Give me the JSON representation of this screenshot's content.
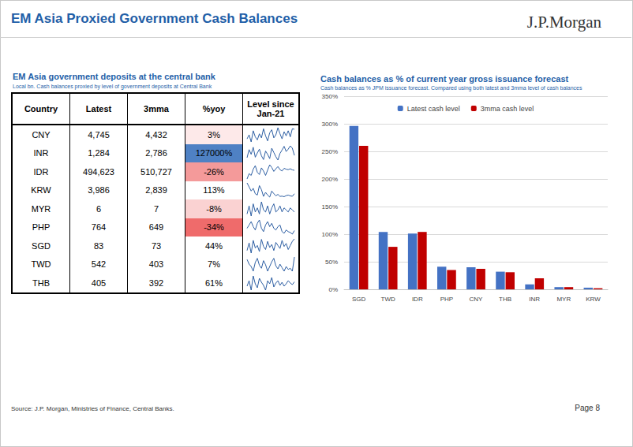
{
  "header": {
    "title": "EM Asia Proxied Government Cash Balances",
    "logo": "J.P.Morgan"
  },
  "table": {
    "title": "EM Asia government deposits at the central bank",
    "subtitle": "Local bn. Cash balances proxied by level of government deposits at Central Bank",
    "columns": [
      "Country",
      "Latest",
      "3mma",
      "%yoy",
      "Level since Jan-21"
    ],
    "rows": [
      {
        "country": "CNY",
        "latest": "4,745",
        "mma3": "4,432",
        "yoy": "3%",
        "yoy_color": "#fde9e9",
        "level_since_jan21": [
          3800,
          4200,
          3500,
          4600,
          4000,
          3700,
          4300,
          3900,
          4800,
          4100,
          3600,
          4400,
          4700,
          3900,
          4200,
          4900,
          4300,
          3800,
          4500,
          4100,
          4600,
          4000,
          4800,
          4745
        ]
      },
      {
        "country": "INR",
        "latest": "1,284",
        "mma3": "2,786",
        "yoy": "127000%",
        "yoy_color": "#4f81c4",
        "level_since_jan21": [
          800,
          2500,
          1500,
          3000,
          900,
          1800,
          2600,
          1200,
          400,
          2200,
          1500,
          600,
          2800,
          1900,
          1000,
          300,
          1700,
          2400,
          3200,
          2100,
          2600,
          3300,
          2800,
          1284
        ]
      },
      {
        "country": "IDR",
        "latest": "494,623",
        "mma3": "510,727",
        "yoy": "-26%",
        "yoy_color": "#f49a9a",
        "level_since_jan21": [
          300000,
          420000,
          380000,
          520000,
          600000,
          450000,
          400000,
          550000,
          480000,
          380000,
          500000,
          620000,
          560000,
          470000,
          530000,
          580000,
          510000,
          480000,
          540000,
          520000,
          510000,
          530000,
          505000,
          494623
        ]
      },
      {
        "country": "KRW",
        "latest": "3,986",
        "mma3": "2,839",
        "yoy": "113%",
        "yoy_color": "#ffffff",
        "level_since_jan21": [
          12000,
          9000,
          6000,
          8000,
          4000,
          3000,
          10000,
          7000,
          2000,
          5000,
          3000,
          1500,
          6000,
          4000,
          2500,
          3500,
          2000,
          2200,
          1800,
          2600,
          3000,
          2400,
          2100,
          3986
        ]
      },
      {
        "country": "MYR",
        "latest": "6",
        "mma3": "7",
        "yoy": "-8%",
        "yoy_color": "#fad2d2",
        "level_since_jan21": [
          5,
          9,
          4,
          10,
          6,
          8,
          5,
          11,
          7,
          6,
          9,
          5,
          8,
          10,
          6,
          7,
          9,
          6,
          8,
          7,
          6,
          8,
          7,
          6
        ]
      },
      {
        "country": "PHP",
        "latest": "764",
        "mma3": "649",
        "yoy": "-34%",
        "yoy_color": "#ef6b6b",
        "level_since_jan21": [
          900,
          1100,
          1300,
          1000,
          800,
          1200,
          1400,
          900,
          700,
          1100,
          1300,
          1000,
          1200,
          900,
          800,
          1000,
          1100,
          700,
          600,
          800,
          700,
          650,
          550,
          764
        ]
      },
      {
        "country": "SGD",
        "latest": "83",
        "mma3": "73",
        "yoy": "44%",
        "yoy_color": "#ffffff",
        "level_since_jan21": [
          60,
          75,
          55,
          80,
          65,
          70,
          58,
          82,
          68,
          62,
          78,
          66,
          72,
          60,
          76,
          70,
          64,
          80,
          68,
          74,
          62,
          70,
          78,
          83
        ]
      },
      {
        "country": "TWD",
        "latest": "542",
        "mma3": "403",
        "yoy": "7%",
        "yoy_color": "#ffffff",
        "level_since_jan21": [
          500,
          420,
          380,
          300,
          450,
          520,
          400,
          350,
          480,
          410,
          300,
          380,
          460,
          520,
          390,
          340,
          420,
          360,
          300,
          380,
          330,
          350,
          300,
          542
        ]
      },
      {
        "country": "THB",
        "latest": "405",
        "mma3": "392",
        "yoy": "61%",
        "yoy_color": "#ffffff",
        "level_since_jan21": [
          350,
          420,
          300,
          480,
          380,
          330,
          450,
          400,
          360,
          300,
          420,
          380,
          460,
          340,
          390,
          420,
          360,
          400,
          350,
          380,
          420,
          390,
          370,
          405
        ]
      }
    ]
  },
  "chart_data": {
    "type": "bar",
    "title": "Cash balances as % of current year gross issuance forecast",
    "subtitle": "Cash balances as % JPM issuance forecast. Compared using both latest and 3mma level of cash balances",
    "categories": [
      "SGD",
      "TWD",
      "IDR",
      "PHP",
      "CNY",
      "THB",
      "INR",
      "MYR",
      "KRW"
    ],
    "series": [
      {
        "name": "Latest cash level",
        "color": "#4472c4",
        "values": [
          296,
          104,
          101,
          41,
          40,
          32,
          9,
          4,
          3
        ]
      },
      {
        "name": "3mma cash level",
        "color": "#c00000",
        "values": [
          260,
          77,
          104,
          35,
          37,
          31,
          20,
          4,
          2
        ]
      }
    ],
    "ylim": [
      0,
      350
    ],
    "yticks": [
      {
        "value": 0,
        "label": "0%"
      },
      {
        "value": 50,
        "label": "50%"
      },
      {
        "value": 100,
        "label": "100%"
      },
      {
        "value": 150,
        "label": "150%"
      },
      {
        "value": 200,
        "label": "200%"
      },
      {
        "value": 250,
        "label": "250%"
      },
      {
        "value": 300,
        "label": "300%"
      },
      {
        "value": 350,
        "label": "350%"
      }
    ],
    "grid": true,
    "legend": "top"
  },
  "footer": {
    "source": "Source: J.P. Morgan, Ministries of Finance, Central Banks.",
    "page": "Page 8"
  }
}
